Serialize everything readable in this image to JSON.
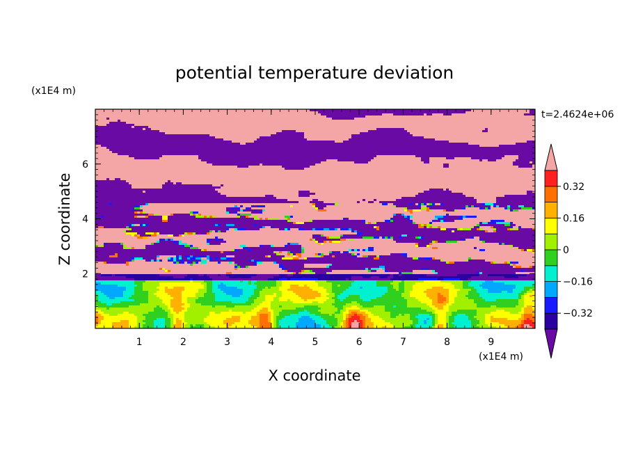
{
  "chart_data": {
    "type": "heatmap",
    "title": "potential temperature deviation",
    "xlabel": "X coordinate",
    "ylabel": "Z coordinate",
    "x_unit": "(x1E4 m)",
    "y_unit": "(x1E4 m)",
    "time_label": "t=2.4624e+06",
    "xlim": [
      0,
      10
    ],
    "ylim": [
      0,
      8
    ],
    "x_ticks": [
      1,
      2,
      3,
      4,
      5,
      6,
      7,
      8,
      9
    ],
    "y_ticks": [
      2,
      4,
      6
    ],
    "colorbar": {
      "levels": [
        -0.4,
        -0.32,
        -0.24,
        -0.16,
        -0.08,
        0,
        0.08,
        0.16,
        0.24,
        0.32,
        0.4
      ],
      "tick_labels": [
        "0.32",
        "0.16",
        "0",
        "−0.16",
        "−0.32"
      ],
      "tick_values": [
        0.32,
        0.16,
        0,
        -0.16,
        -0.32
      ],
      "colors": [
        "#6a0aa5",
        "#2a00a0",
        "#1a1aff",
        "#00a8ff",
        "#00f0d0",
        "#30d020",
        "#a0f000",
        "#ffff00",
        "#ffb000",
        "#ff7000",
        "#ff2020",
        "#f4a6a6"
      ],
      "extend": "both"
    },
    "layers": [
      {
        "z_range": [
          0,
          2.0
        ],
        "pattern": "convective cells near surface",
        "colors": [
          "#00f0d0",
          "#30d020",
          "#a0f000",
          "#ffff00",
          "#ffb000",
          "#00a8ff",
          "#1a1aff"
        ]
      },
      {
        "z_range": [
          2.0,
          4.5
        ],
        "pattern": "turbulent mixed bands",
        "colors": [
          "#f4a6a6",
          "#6a0aa5",
          "#ff2020",
          "#ffff00",
          "#30d020",
          "#00f0d0",
          "#1a1aff"
        ]
      },
      {
        "z_range": [
          4.5,
          8.0
        ],
        "pattern": "stratified bands",
        "colors": [
          "#f4a6a6",
          "#6a0aa5"
        ]
      }
    ],
    "grid": false,
    "legend": "right"
  }
}
